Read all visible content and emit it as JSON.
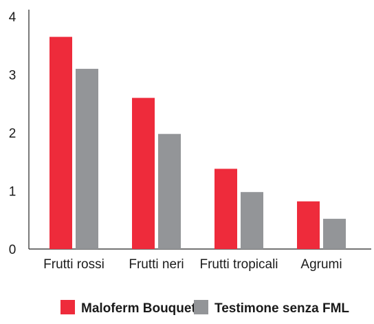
{
  "chart_data": {
    "type": "bar",
    "title": "",
    "xlabel": "",
    "ylabel": "",
    "categories": [
      "Frutti rossi",
      "Frutti neri",
      "Frutti tropicali",
      "Agrumi"
    ],
    "series": [
      {
        "name": "Maloferm Bouquet",
        "color": "#ee2b3b",
        "values": [
          3.65,
          2.6,
          1.38,
          0.82
        ]
      },
      {
        "name": "Testimone senza FML",
        "color": "#939598",
        "values": [
          3.1,
          1.98,
          0.98,
          0.52
        ]
      }
    ],
    "ylim": [
      0,
      4
    ],
    "yticks": [
      "0",
      "1",
      "2",
      "3",
      "4"
    ],
    "grid": false,
    "legend_position": "bottom"
  }
}
